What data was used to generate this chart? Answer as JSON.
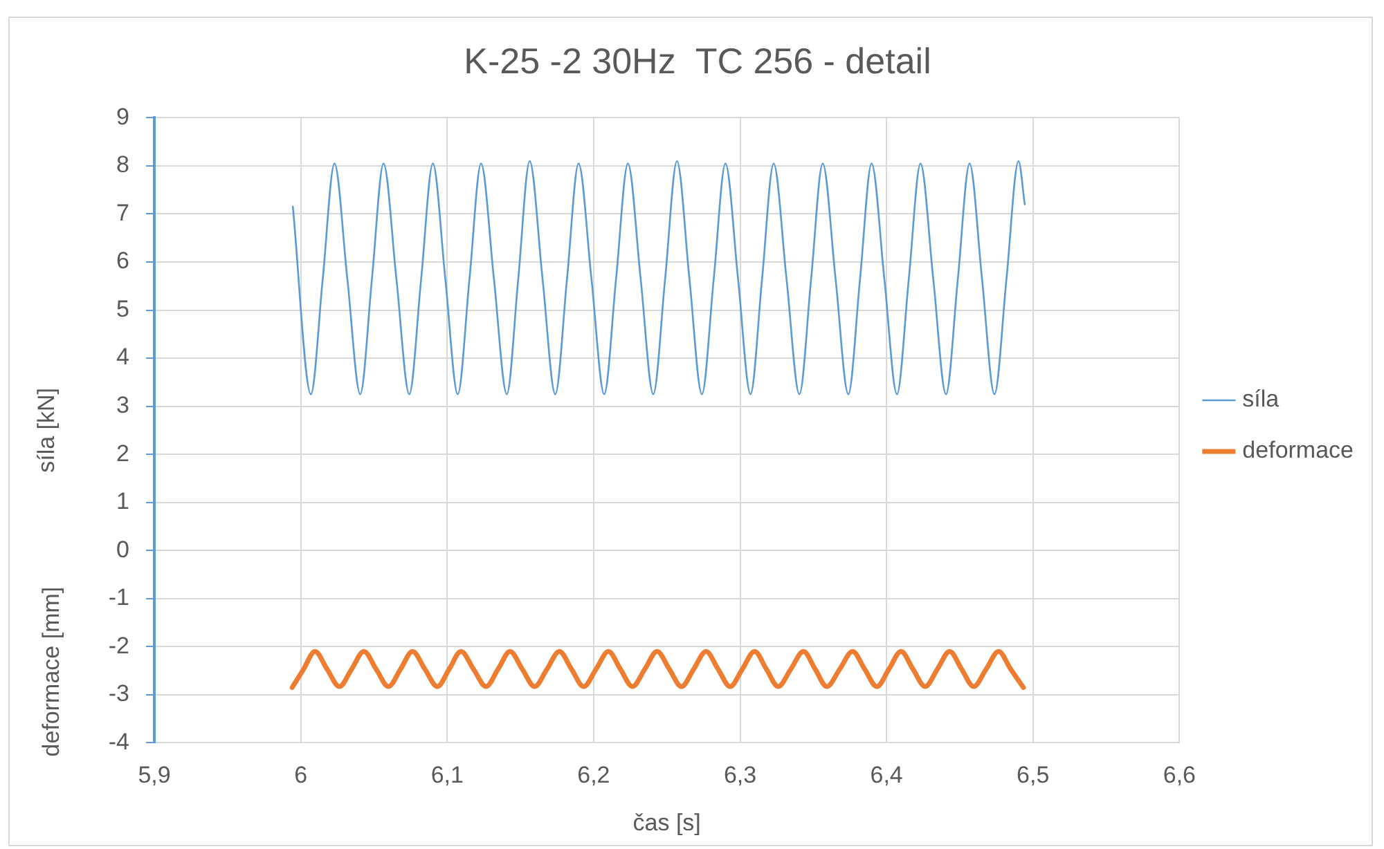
{
  "chart_data": {
    "type": "line",
    "title": "K-25 -2 30Hz  TC 256 - detail",
    "xlabel": "čas [s]",
    "ylabel": "síla [kN]",
    "annotations": [
      "deformace [mm]"
    ],
    "xlim": [
      5.9,
      6.6
    ],
    "xticks": [
      {
        "value": 5.9,
        "label": "5,9"
      },
      6,
      {
        "value": 6.1,
        "label": "6,1"
      },
      {
        "value": 6.2,
        "label": "6,2"
      },
      {
        "value": 6.3,
        "label": "6,3"
      },
      {
        "value": 6.4,
        "label": "6,4"
      },
      {
        "value": 6.5,
        "label": "6,5"
      },
      {
        "value": 6.6,
        "label": "6,6"
      }
    ],
    "ylim": [
      -4,
      9
    ],
    "yticks": [
      -4,
      -3,
      -2,
      -1,
      0,
      1,
      2,
      3,
      4,
      5,
      6,
      7,
      8,
      9
    ],
    "grid": true,
    "legend": "right",
    "marker": "none",
    "line_style": "solid",
    "series": [
      {
        "name": "síla",
        "color": "#5b9bd5",
        "x": [
          5.9946,
          6.0069,
          6.015,
          6.023,
          6.0318,
          6.0406,
          6.0486,
          6.0565,
          6.0653,
          6.0741,
          6.0822,
          6.0902,
          6.0987,
          6.1072,
          6.1152,
          6.1231,
          6.1319,
          6.1407,
          6.1485,
          6.1563,
          6.1651,
          6.1738,
          6.1818,
          6.1897,
          6.1985,
          6.2072,
          6.2153,
          6.2234,
          6.2321,
          6.2407,
          6.2488,
          6.2569,
          6.2654,
          6.2739,
          6.282,
          6.29,
          6.2986,
          6.3071,
          6.315,
          6.3229,
          6.3317,
          6.3405,
          6.3485,
          6.3564,
          6.3652,
          6.3739,
          6.3819,
          6.3898,
          6.3985,
          6.4071,
          6.4152,
          6.4232,
          6.4319,
          6.4406,
          6.4487,
          6.4567,
          6.4652,
          6.4737,
          6.4819,
          6.4901,
          6.4944
        ],
        "values": [
          7.15,
          3.25,
          5.65,
          8.05,
          5.65,
          3.25,
          5.65,
          8.05,
          5.65,
          3.25,
          5.65,
          8.05,
          5.65,
          3.25,
          5.65,
          8.05,
          5.65,
          3.25,
          5.65,
          8.1,
          5.65,
          3.25,
          5.65,
          8.05,
          5.65,
          3.25,
          5.65,
          8.05,
          5.65,
          3.25,
          5.65,
          8.1,
          5.65,
          3.25,
          5.65,
          8.05,
          5.65,
          3.25,
          5.65,
          8.05,
          5.65,
          3.25,
          5.65,
          8.05,
          5.65,
          3.25,
          5.65,
          8.05,
          5.65,
          3.25,
          5.65,
          8.05,
          5.65,
          3.25,
          5.65,
          8.05,
          5.65,
          3.25,
          5.65,
          8.1,
          7.2
        ]
      },
      {
        "name": "deformace",
        "color": "#ed7d31",
        "x": [
          5.9941,
          6.0019,
          6.0097,
          6.018,
          6.0264,
          6.0347,
          6.0431,
          6.0515,
          6.0599,
          6.0681,
          6.0763,
          6.0848,
          6.0933,
          6.1013,
          6.1094,
          6.118,
          6.1265,
          6.1347,
          6.1429,
          6.1513,
          6.1597,
          6.1681,
          6.1766,
          6.1849,
          6.1932,
          6.2016,
          6.2101,
          6.2183,
          6.2265,
          6.2349,
          6.2433,
          6.2517,
          6.26,
          6.2683,
          6.2767,
          6.285,
          6.2932,
          6.3015,
          6.3099,
          6.318,
          6.326,
          6.3346,
          6.3433,
          6.3513,
          6.3592,
          6.368,
          6.3768,
          6.3851,
          6.3934,
          6.4016,
          6.4099,
          6.4181,
          6.4264,
          6.4347,
          6.4431,
          6.4513,
          6.4595,
          6.468,
          6.4765,
          6.4848,
          6.4935
        ],
        "values": [
          -2.85,
          -2.47,
          -2.1,
          -2.47,
          -2.83,
          -2.47,
          -2.1,
          -2.47,
          -2.83,
          -2.47,
          -2.1,
          -2.47,
          -2.83,
          -2.47,
          -2.1,
          -2.47,
          -2.83,
          -2.47,
          -2.1,
          -2.47,
          -2.83,
          -2.47,
          -2.1,
          -2.47,
          -2.83,
          -2.47,
          -2.1,
          -2.47,
          -2.83,
          -2.47,
          -2.1,
          -2.47,
          -2.83,
          -2.47,
          -2.1,
          -2.47,
          -2.83,
          -2.47,
          -2.1,
          -2.47,
          -2.83,
          -2.47,
          -2.1,
          -2.47,
          -2.83,
          -2.47,
          -2.1,
          -2.47,
          -2.83,
          -2.47,
          -2.1,
          -2.47,
          -2.83,
          -2.47,
          -2.1,
          -2.47,
          -2.83,
          -2.47,
          -2.1,
          -2.47,
          -2.85
        ]
      }
    ]
  }
}
